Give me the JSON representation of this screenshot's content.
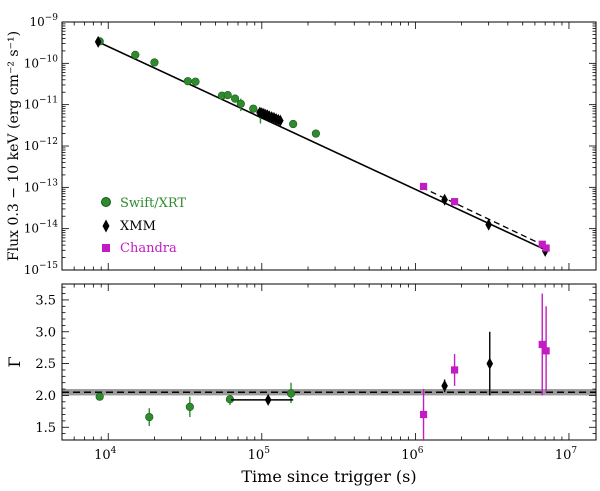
{
  "colors": {
    "swift": "#2e8b2e",
    "swift_edge": "#1a5a1a",
    "xmm": "#000000",
    "chandra": "#c21cc2",
    "band": "#9a9a9a"
  },
  "chart_data": [
    {
      "type": "scatter",
      "panel": "top",
      "ylabel": "Flux 0.3 − 10 keV (erg cm⁻² s⁻¹)",
      "xscale": "log",
      "yscale": "log",
      "xlim": [
        5000,
        15000000
      ],
      "ylim": [
        1e-15,
        1e-09
      ],
      "ytick_labels": [
        {
          "value": 1e-09,
          "base": "10",
          "exp": "−9"
        },
        {
          "value": 1e-10,
          "base": "10",
          "exp": "−10"
        },
        {
          "value": 1e-11,
          "base": "10",
          "exp": "−11"
        },
        {
          "value": 1e-12,
          "base": "10",
          "exp": "−12"
        },
        {
          "value": 1e-13,
          "base": "10",
          "exp": "−13"
        },
        {
          "value": 1e-14,
          "base": "10",
          "exp": "−14"
        },
        {
          "value": 1e-15,
          "base": "10",
          "exp": "−15"
        }
      ],
      "legend": {
        "position": "lower-left",
        "entries": [
          {
            "label": "Swift/XRT",
            "marker": "circle",
            "series": "Swift/XRT"
          },
          {
            "label": "XMM",
            "marker": "diamond",
            "series": "XMM"
          },
          {
            "label": "Chandra",
            "marker": "square",
            "series": "Chandra"
          }
        ]
      },
      "models": [
        {
          "name": "fit-solid",
          "style": "solid",
          "points": [
            [
              8600,
              3.3e-10
            ],
            [
              7000000,
              3.1e-15
            ]
          ]
        },
        {
          "name": "fit-dashed",
          "style": "dashed",
          "points": [
            [
              1100000,
              1e-13
            ],
            [
              7000000,
              3.8e-15
            ]
          ]
        }
      ],
      "series": [
        {
          "name": "Swift/XRT",
          "marker": "circle",
          "points": [
            {
              "x": 8800,
              "y": 3.4e-10
            },
            {
              "x": 15000,
              "y": 1.6e-10
            },
            {
              "x": 20000,
              "y": 1.05e-10
            },
            {
              "x": 33000,
              "y": 3.7e-11
            },
            {
              "x": 37000,
              "y": 3.6e-11
            },
            {
              "x": 55000,
              "y": 1.65e-11
            },
            {
              "x": 60000,
              "y": 1.7e-11
            },
            {
              "x": 67000,
              "y": 1.4e-11
            },
            {
              "x": 73000,
              "y": 1.05e-11,
              "ylo": 7e-12,
              "yhi": 1.4e-11
            },
            {
              "x": 88000,
              "y": 8e-12
            },
            {
              "x": 98000,
              "y": 6.5e-12,
              "ylo": 3.5e-12,
              "yhi": 8.5e-12
            },
            {
              "x": 105000,
              "y": 5.8e-12
            },
            {
              "x": 110000,
              "y": 5.2e-12
            },
            {
              "x": 120000,
              "y": 4.6e-12
            },
            {
              "x": 160000,
              "y": 3.4e-12
            },
            {
              "x": 225000,
              "y": 2e-12
            }
          ]
        },
        {
          "name": "XMM",
          "marker": "diamond",
          "points": [
            {
              "x": 8600,
              "y": 3.3e-10
            },
            {
              "x": 97000,
              "y": 6.4e-12
            },
            {
              "x": 100000,
              "y": 6.2e-12
            },
            {
              "x": 103000,
              "y": 6e-12
            },
            {
              "x": 106000,
              "y": 5.7e-12
            },
            {
              "x": 109000,
              "y": 5.5e-12
            },
            {
              "x": 112000,
              "y": 5.2e-12
            },
            {
              "x": 116000,
              "y": 5e-12
            },
            {
              "x": 120000,
              "y": 4.8e-12
            },
            {
              "x": 124000,
              "y": 4.5e-12
            },
            {
              "x": 128000,
              "y": 4.3e-12
            },
            {
              "x": 132000,
              "y": 4.1e-12
            },
            {
              "x": 1550000,
              "y": 5e-14
            },
            {
              "x": 3000000,
              "y": 1.25e-14
            },
            {
              "x": 7000000,
              "y": 2.9e-15
            }
          ]
        },
        {
          "name": "Chandra",
          "marker": "square",
          "points": [
            {
              "x": 1130000,
              "y": 1.05e-13
            },
            {
              "x": 1800000,
              "y": 4.5e-14
            },
            {
              "x": 6700000,
              "y": 4.2e-15
            },
            {
              "x": 7100000,
              "y": 3.4e-15
            }
          ]
        }
      ]
    },
    {
      "type": "scatter",
      "panel": "bottom",
      "xlabel": "Time since trigger (s)",
      "ylabel": "Γ",
      "xscale": "log",
      "xlim": [
        5000,
        15000000
      ],
      "ylim": [
        1.3,
        3.75
      ],
      "xtick_labels": [
        {
          "value": 10000,
          "base": "10",
          "exp": "4"
        },
        {
          "value": 100000,
          "base": "10",
          "exp": "5"
        },
        {
          "value": 1000000,
          "base": "10",
          "exp": "6"
        },
        {
          "value": 10000000,
          "base": "10",
          "exp": "7"
        }
      ],
      "ytick_labels": [
        {
          "value": 1.5,
          "label": "1.5"
        },
        {
          "value": 2.0,
          "label": "2.0"
        },
        {
          "value": 2.5,
          "label": "2.5"
        },
        {
          "value": 3.0,
          "label": "3.0"
        },
        {
          "value": 3.5,
          "label": "3.5"
        }
      ],
      "reference": {
        "value": 2.05,
        "band": [
          2.0,
          2.1
        ],
        "style": "dashed"
      },
      "series": [
        {
          "name": "Swift/XRT",
          "marker": "circle",
          "points": [
            {
              "x": 8800,
              "y": 1.98
            },
            {
              "x": 18500,
              "y": 1.66,
              "ylo": 1.52,
              "yhi": 1.8
            },
            {
              "x": 34000,
              "y": 1.82,
              "ylo": 1.66,
              "yhi": 1.98
            },
            {
              "x": 62000,
              "y": 1.94,
              "ylo": 1.85,
              "yhi": 2.0
            },
            {
              "x": 155000,
              "y": 2.03,
              "ylo": 1.88,
              "yhi": 2.2
            }
          ]
        },
        {
          "name": "XMM",
          "marker": "diamond",
          "points": [
            {
              "x": 110000,
              "y": 1.93,
              "xlo": 63000,
              "xhi": 160000
            },
            {
              "x": 1550000,
              "y": 2.15,
              "ylo": 2.05,
              "yhi": 2.25
            },
            {
              "x": 3050000,
              "y": 2.5,
              "ylo": 2.0,
              "yhi": 3.0
            }
          ]
        },
        {
          "name": "Chandra",
          "marker": "square",
          "points": [
            {
              "x": 1130000,
              "y": 1.7,
              "ylo": 1.3,
              "yhi": 2.1
            },
            {
              "x": 1800000,
              "y": 2.4,
              "ylo": 2.15,
              "yhi": 2.65
            },
            {
              "x": 6700000,
              "y": 2.8,
              "ylo": 2.0,
              "yhi": 3.6
            },
            {
              "x": 7100000,
              "y": 2.7,
              "ylo": 2.05,
              "yhi": 3.4
            }
          ]
        }
      ]
    }
  ]
}
